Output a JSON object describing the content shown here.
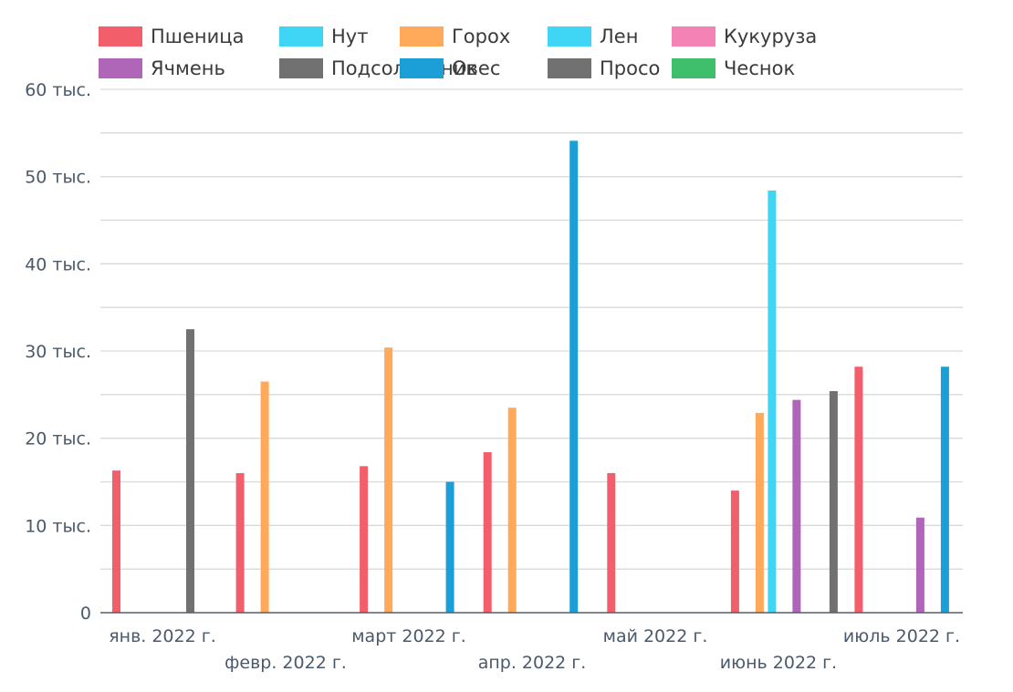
{
  "chart_data": {
    "type": "bar",
    "title": "",
    "xlabel": "",
    "ylabel": "",
    "ylim": [
      0,
      60000
    ],
    "y_ticks": [
      {
        "value": 0,
        "label": "0"
      },
      {
        "value": 10000,
        "label": "10 тыс."
      },
      {
        "value": 20000,
        "label": "20 тыс."
      },
      {
        "value": 30000,
        "label": "30 тыс."
      },
      {
        "value": 40000,
        "label": "40 тыс."
      },
      {
        "value": 50000,
        "label": "50 тыс."
      },
      {
        "value": 60000,
        "label": "60 тыс."
      }
    ],
    "categories": [
      "янв. 2022 г.",
      "февр. 2022 г.",
      "март 2022 г.",
      "апр. 2022 г.",
      "май 2022 г.",
      "июнь 2022 г.",
      "июль 2022 г."
    ],
    "legend_position": "top",
    "grid": true,
    "series": [
      {
        "name": "Пшеница",
        "color": "#f25f6b",
        "values": [
          16300,
          16000,
          16800,
          18400,
          16000,
          14000,
          28200
        ]
      },
      {
        "name": "Нут",
        "color": "#3fd6f5",
        "values": [
          null,
          null,
          null,
          null,
          null,
          null,
          null
        ]
      },
      {
        "name": "Горох",
        "color": "#ffaa5a",
        "values": [
          null,
          26500,
          30400,
          23500,
          null,
          22900,
          null
        ]
      },
      {
        "name": "Лен",
        "color": "#3fd6f5",
        "values": [
          null,
          null,
          null,
          null,
          null,
          48400,
          null
        ]
      },
      {
        "name": "Кукуруза",
        "color": "#f582b5",
        "values": [
          null,
          null,
          null,
          null,
          null,
          null,
          null
        ]
      },
      {
        "name": "Ячмень",
        "color": "#b066b8",
        "values": [
          null,
          null,
          null,
          null,
          null,
          24400,
          10900
        ]
      },
      {
        "name": "Подсолнечник",
        "color": "#717171",
        "values": [
          32500,
          null,
          null,
          null,
          null,
          null,
          null
        ]
      },
      {
        "name": "Овес",
        "color": "#1c9fd6",
        "values": [
          null,
          null,
          15000,
          54100,
          null,
          null,
          28200
        ]
      },
      {
        "name": "Просо",
        "color": "#717171",
        "values": [
          null,
          null,
          null,
          null,
          null,
          25400,
          null
        ]
      },
      {
        "name": "Чеснок",
        "color": "#3fbf6b",
        "values": [
          null,
          null,
          null,
          null,
          null,
          null,
          null
        ]
      }
    ]
  }
}
